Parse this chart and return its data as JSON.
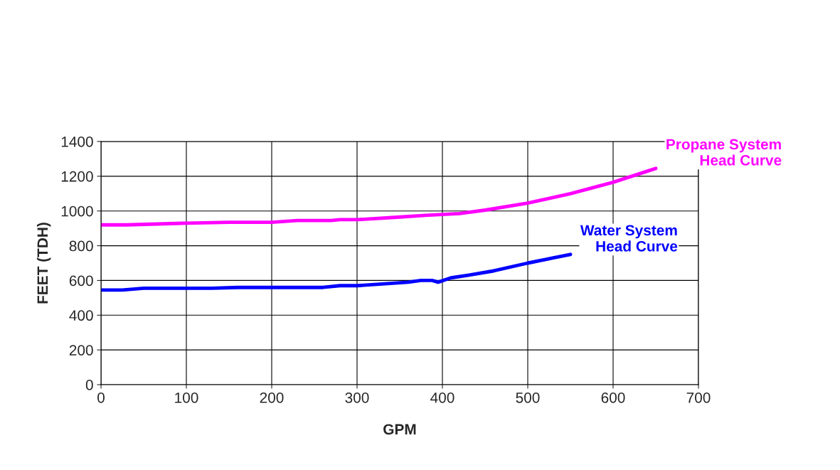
{
  "chart_data": {
    "type": "line",
    "xlabel": "GPM",
    "ylabel": "FEET (TDH)",
    "xlim": [
      0,
      700
    ],
    "xticks": [
      0,
      100,
      200,
      300,
      400,
      500,
      600,
      700
    ],
    "ylim": [
      0,
      1400
    ],
    "yticks": [
      0,
      200,
      400,
      600,
      800,
      1000,
      1200,
      1400
    ],
    "grid": true,
    "legend": false,
    "marker": "none",
    "line_style": "solid",
    "series": [
      {
        "name": "Propane System\nHead Curve",
        "color": "#ff00ff",
        "x": [
          0,
          30,
          100,
          150,
          200,
          230,
          270,
          280,
          300,
          350,
          380,
          420,
          450,
          500,
          550,
          600,
          650
        ],
        "values": [
          920,
          920,
          930,
          935,
          935,
          945,
          945,
          950,
          950,
          965,
          975,
          985,
          1005,
          1045,
          1100,
          1165,
          1245
        ]
      },
      {
        "name": "Water System\nHead Curve",
        "color": "#0000ff",
        "x": [
          0,
          25,
          50,
          130,
          160,
          260,
          280,
          300,
          360,
          375,
          388,
          395,
          410,
          430,
          460,
          500,
          530,
          550
        ],
        "values": [
          545,
          545,
          555,
          555,
          560,
          560,
          570,
          570,
          590,
          600,
          600,
          590,
          615,
          630,
          655,
          700,
          730,
          750
        ]
      }
    ]
  }
}
